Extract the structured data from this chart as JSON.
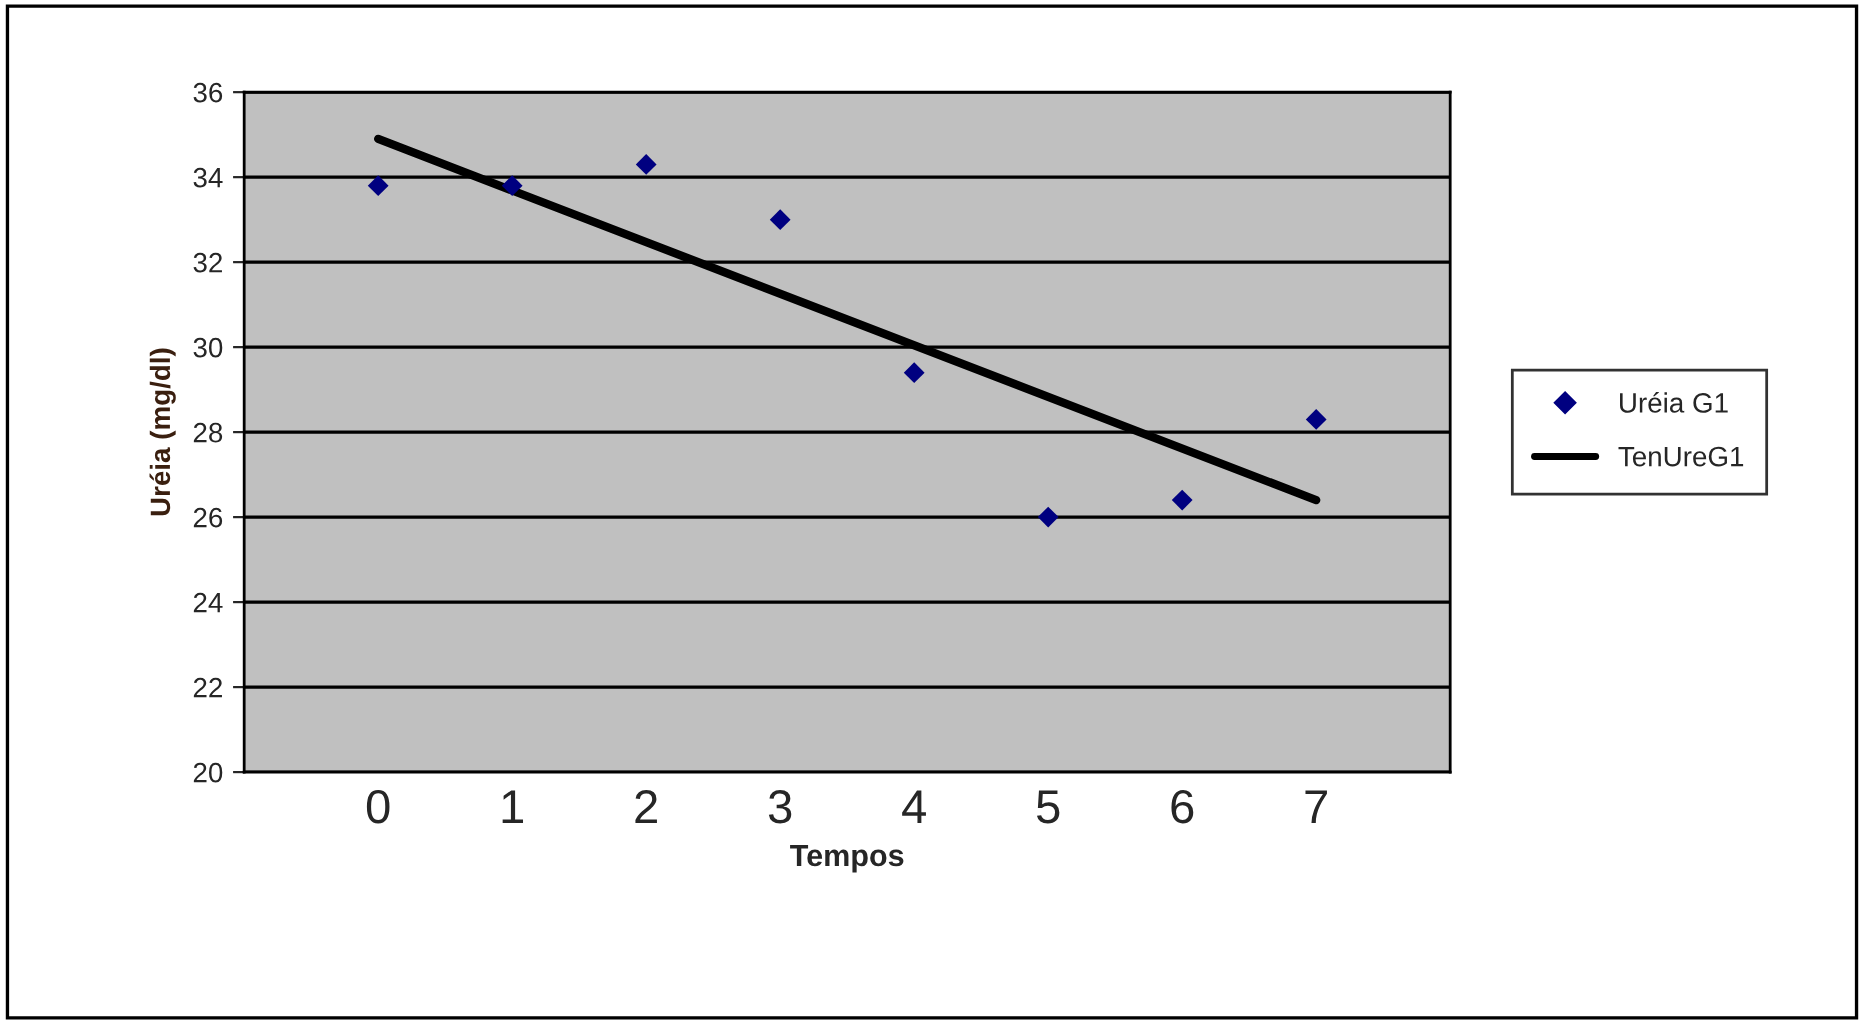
{
  "chart_data": {
    "type": "scatter",
    "xlabel": "Tempos",
    "ylabel": "Uréia (mg/dl)",
    "x": [
      0,
      1,
      2,
      3,
      4,
      5,
      6,
      7
    ],
    "series": [
      {
        "name": "Uréia G1",
        "color": "#000080",
        "marker": "diamond",
        "values": [
          33.8,
          33.8,
          34.3,
          33.0,
          29.4,
          26.0,
          26.4,
          28.3
        ]
      },
      {
        "name": "TenUreG1",
        "type": "line",
        "color": "#000000",
        "line_style": "solid",
        "x": [
          0,
          7
        ],
        "values": [
          34.9,
          26.4
        ]
      }
    ],
    "xlim": [
      -1,
      8
    ],
    "xticks": [
      0,
      1,
      2,
      3,
      4,
      5,
      6,
      7
    ],
    "ylim": [
      20,
      36
    ],
    "yticks": [
      20,
      22,
      24,
      26,
      28,
      30,
      32,
      34,
      36
    ],
    "grid": "y",
    "legend": "right"
  }
}
